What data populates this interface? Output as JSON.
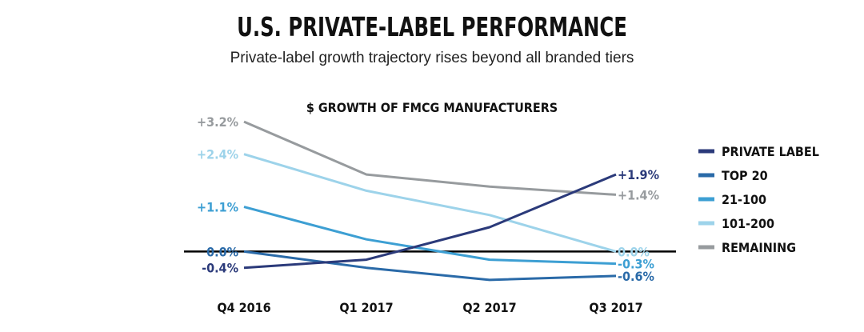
{
  "title": "U.S. PRIVATE-LABEL PERFORMANCE",
  "subtitle": "Private-label growth trajectory rises beyond all branded tiers",
  "chart_data": {
    "type": "line",
    "title": "$ GROWTH OF FMCG MANUFACTURERS",
    "categories": [
      "Q4 2016",
      "Q1 2017",
      "Q2 2017",
      "Q3 2017"
    ],
    "ylim": [
      -0.8,
      3.4
    ],
    "legend_position": "right",
    "series": [
      {
        "name": "PRIVATE LABEL",
        "color": "#2b3a7a",
        "values": [
          -0.4,
          -0.2,
          0.6,
          1.9
        ],
        "start_label": "-0.4%",
        "end_label": "+1.9%"
      },
      {
        "name": "TOP 20",
        "color": "#2a6aa8",
        "values": [
          0.0,
          -0.4,
          -0.7,
          -0.6
        ],
        "start_label": "0.0%",
        "end_label": "-0.6%"
      },
      {
        "name": "21-100",
        "color": "#3d9fd3",
        "values": [
          1.1,
          0.3,
          -0.2,
          -0.3
        ],
        "start_label": "+1.1%",
        "end_label": "-0.3%"
      },
      {
        "name": "101-200",
        "color": "#9dd3ea",
        "values": [
          2.4,
          1.5,
          0.9,
          0.0
        ],
        "start_label": "+2.4%",
        "end_label": "0.0%"
      },
      {
        "name": "REMAINING",
        "color": "#979b9e",
        "values": [
          3.2,
          1.9,
          1.6,
          1.4
        ],
        "start_label": "+3.2%",
        "end_label": "+1.4%"
      }
    ]
  }
}
